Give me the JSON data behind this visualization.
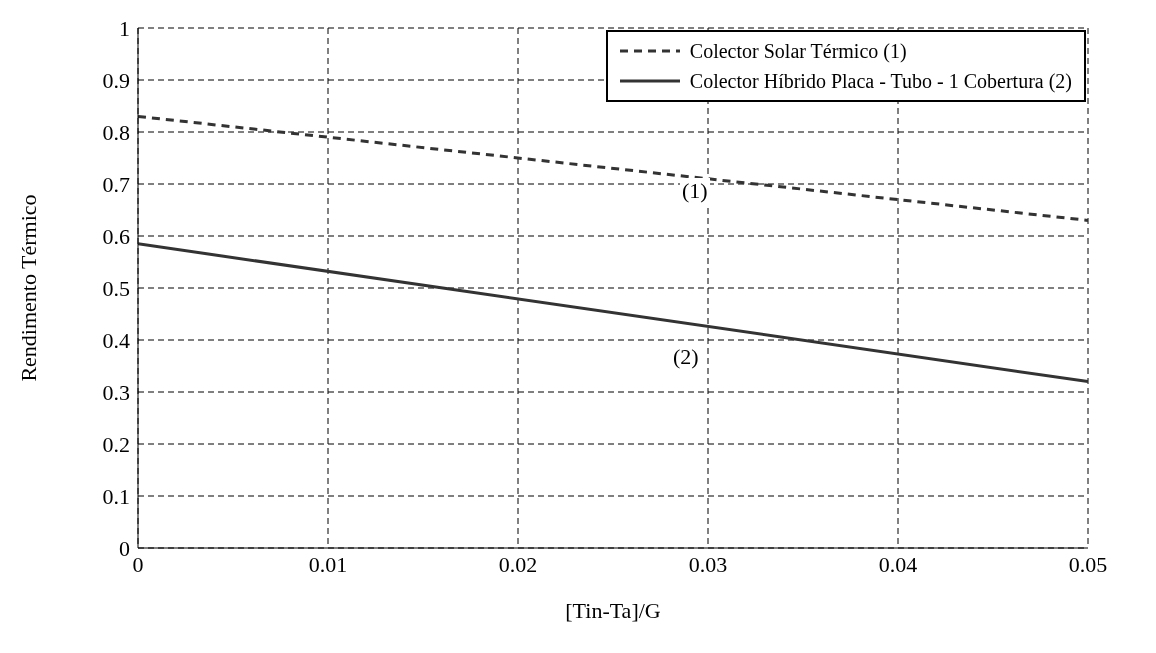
{
  "chart_data": {
    "type": "line",
    "xlabel": "[Tin-Ta]/G",
    "ylabel": "Rendimento Térmico",
    "x": [
      0,
      0.05
    ],
    "series": [
      {
        "name": "Colector Solar Térmico (1)",
        "color": "#333333",
        "values": [
          0.83,
          0.63
        ],
        "line_style": "dashed"
      },
      {
        "name": "Colector Híbrido Placa - Tubo - 1 Cobertura (2)",
        "color": "#333333",
        "values": [
          0.585,
          0.32
        ],
        "line_style": "solid"
      }
    ],
    "xlim": [
      0,
      0.05
    ],
    "xticks": [
      0,
      0.01,
      0.02,
      0.03,
      0.04,
      0.05
    ],
    "ylim": [
      0,
      1
    ],
    "yticks": [
      0,
      0.1,
      0.2,
      0.3,
      0.4,
      0.5,
      0.6,
      0.7,
      0.8,
      0.9,
      1
    ],
    "annotations": [
      "(1)",
      "(2)"
    ],
    "grid": true,
    "legend": "top right",
    "marker": "none"
  }
}
